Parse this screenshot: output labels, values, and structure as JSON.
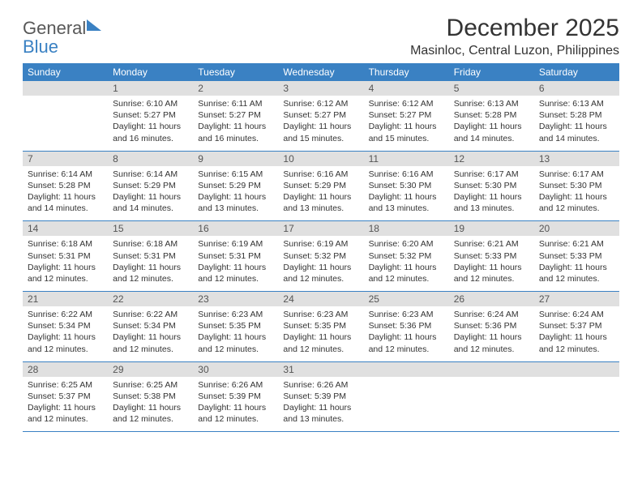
{
  "logo": {
    "text1": "General",
    "text2": "Blue"
  },
  "title": "December 2025",
  "location": "Masinloc, Central Luzon, Philippines",
  "weekdays": [
    "Sunday",
    "Monday",
    "Tuesday",
    "Wednesday",
    "Thursday",
    "Friday",
    "Saturday"
  ],
  "colors": {
    "header_bg": "#3a81c3",
    "daynum_bg": "#e0e0e0",
    "text": "#333333"
  },
  "weeks": [
    {
      "nums": [
        "",
        "1",
        "2",
        "3",
        "4",
        "5",
        "6"
      ],
      "cells": [
        {
          "sunrise": "",
          "sunset": "",
          "daylight": ""
        },
        {
          "sunrise": "Sunrise: 6:10 AM",
          "sunset": "Sunset: 5:27 PM",
          "daylight": "Daylight: 11 hours and 16 minutes."
        },
        {
          "sunrise": "Sunrise: 6:11 AM",
          "sunset": "Sunset: 5:27 PM",
          "daylight": "Daylight: 11 hours and 16 minutes."
        },
        {
          "sunrise": "Sunrise: 6:12 AM",
          "sunset": "Sunset: 5:27 PM",
          "daylight": "Daylight: 11 hours and 15 minutes."
        },
        {
          "sunrise": "Sunrise: 6:12 AM",
          "sunset": "Sunset: 5:27 PM",
          "daylight": "Daylight: 11 hours and 15 minutes."
        },
        {
          "sunrise": "Sunrise: 6:13 AM",
          "sunset": "Sunset: 5:28 PM",
          "daylight": "Daylight: 11 hours and 14 minutes."
        },
        {
          "sunrise": "Sunrise: 6:13 AM",
          "sunset": "Sunset: 5:28 PM",
          "daylight": "Daylight: 11 hours and 14 minutes."
        }
      ]
    },
    {
      "nums": [
        "7",
        "8",
        "9",
        "10",
        "11",
        "12",
        "13"
      ],
      "cells": [
        {
          "sunrise": "Sunrise: 6:14 AM",
          "sunset": "Sunset: 5:28 PM",
          "daylight": "Daylight: 11 hours and 14 minutes."
        },
        {
          "sunrise": "Sunrise: 6:14 AM",
          "sunset": "Sunset: 5:29 PM",
          "daylight": "Daylight: 11 hours and 14 minutes."
        },
        {
          "sunrise": "Sunrise: 6:15 AM",
          "sunset": "Sunset: 5:29 PM",
          "daylight": "Daylight: 11 hours and 13 minutes."
        },
        {
          "sunrise": "Sunrise: 6:16 AM",
          "sunset": "Sunset: 5:29 PM",
          "daylight": "Daylight: 11 hours and 13 minutes."
        },
        {
          "sunrise": "Sunrise: 6:16 AM",
          "sunset": "Sunset: 5:30 PM",
          "daylight": "Daylight: 11 hours and 13 minutes."
        },
        {
          "sunrise": "Sunrise: 6:17 AM",
          "sunset": "Sunset: 5:30 PM",
          "daylight": "Daylight: 11 hours and 13 minutes."
        },
        {
          "sunrise": "Sunrise: 6:17 AM",
          "sunset": "Sunset: 5:30 PM",
          "daylight": "Daylight: 11 hours and 12 minutes."
        }
      ]
    },
    {
      "nums": [
        "14",
        "15",
        "16",
        "17",
        "18",
        "19",
        "20"
      ],
      "cells": [
        {
          "sunrise": "Sunrise: 6:18 AM",
          "sunset": "Sunset: 5:31 PM",
          "daylight": "Daylight: 11 hours and 12 minutes."
        },
        {
          "sunrise": "Sunrise: 6:18 AM",
          "sunset": "Sunset: 5:31 PM",
          "daylight": "Daylight: 11 hours and 12 minutes."
        },
        {
          "sunrise": "Sunrise: 6:19 AM",
          "sunset": "Sunset: 5:31 PM",
          "daylight": "Daylight: 11 hours and 12 minutes."
        },
        {
          "sunrise": "Sunrise: 6:19 AM",
          "sunset": "Sunset: 5:32 PM",
          "daylight": "Daylight: 11 hours and 12 minutes."
        },
        {
          "sunrise": "Sunrise: 6:20 AM",
          "sunset": "Sunset: 5:32 PM",
          "daylight": "Daylight: 11 hours and 12 minutes."
        },
        {
          "sunrise": "Sunrise: 6:21 AM",
          "sunset": "Sunset: 5:33 PM",
          "daylight": "Daylight: 11 hours and 12 minutes."
        },
        {
          "sunrise": "Sunrise: 6:21 AM",
          "sunset": "Sunset: 5:33 PM",
          "daylight": "Daylight: 11 hours and 12 minutes."
        }
      ]
    },
    {
      "nums": [
        "21",
        "22",
        "23",
        "24",
        "25",
        "26",
        "27"
      ],
      "cells": [
        {
          "sunrise": "Sunrise: 6:22 AM",
          "sunset": "Sunset: 5:34 PM",
          "daylight": "Daylight: 11 hours and 12 minutes."
        },
        {
          "sunrise": "Sunrise: 6:22 AM",
          "sunset": "Sunset: 5:34 PM",
          "daylight": "Daylight: 11 hours and 12 minutes."
        },
        {
          "sunrise": "Sunrise: 6:23 AM",
          "sunset": "Sunset: 5:35 PM",
          "daylight": "Daylight: 11 hours and 12 minutes."
        },
        {
          "sunrise": "Sunrise: 6:23 AM",
          "sunset": "Sunset: 5:35 PM",
          "daylight": "Daylight: 11 hours and 12 minutes."
        },
        {
          "sunrise": "Sunrise: 6:23 AM",
          "sunset": "Sunset: 5:36 PM",
          "daylight": "Daylight: 11 hours and 12 minutes."
        },
        {
          "sunrise": "Sunrise: 6:24 AM",
          "sunset": "Sunset: 5:36 PM",
          "daylight": "Daylight: 11 hours and 12 minutes."
        },
        {
          "sunrise": "Sunrise: 6:24 AM",
          "sunset": "Sunset: 5:37 PM",
          "daylight": "Daylight: 11 hours and 12 minutes."
        }
      ]
    },
    {
      "nums": [
        "28",
        "29",
        "30",
        "31",
        "",
        "",
        ""
      ],
      "cells": [
        {
          "sunrise": "Sunrise: 6:25 AM",
          "sunset": "Sunset: 5:37 PM",
          "daylight": "Daylight: 11 hours and 12 minutes."
        },
        {
          "sunrise": "Sunrise: 6:25 AM",
          "sunset": "Sunset: 5:38 PM",
          "daylight": "Daylight: 11 hours and 12 minutes."
        },
        {
          "sunrise": "Sunrise: 6:26 AM",
          "sunset": "Sunset: 5:39 PM",
          "daylight": "Daylight: 11 hours and 12 minutes."
        },
        {
          "sunrise": "Sunrise: 6:26 AM",
          "sunset": "Sunset: 5:39 PM",
          "daylight": "Daylight: 11 hours and 13 minutes."
        },
        {
          "sunrise": "",
          "sunset": "",
          "daylight": ""
        },
        {
          "sunrise": "",
          "sunset": "",
          "daylight": ""
        },
        {
          "sunrise": "",
          "sunset": "",
          "daylight": ""
        }
      ]
    }
  ]
}
